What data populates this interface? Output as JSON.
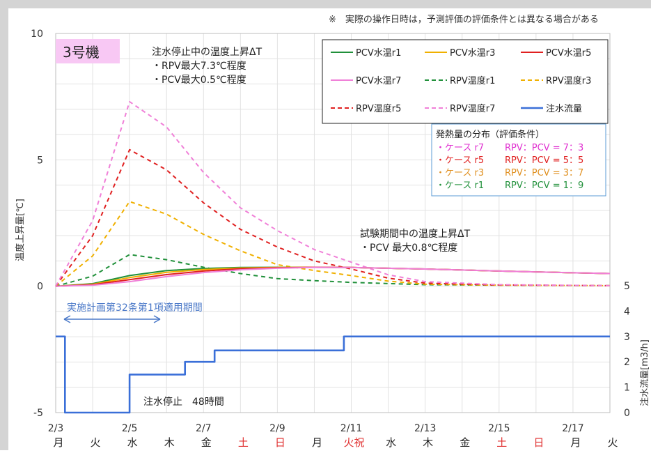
{
  "notice": "※　実際の操作日時は，予測評価の評価条件とは異なる場合がある",
  "unit_label": "3号機",
  "colors": {
    "weekday": "#222222",
    "holiday": "#e03030",
    "annotation_blue": "#4a78c8",
    "legend_heat_border": "#5b9bd5",
    "unit_label_bg": "#f8c8f4"
  },
  "stop_note": {
    "title": "注水停止中の温度上昇ΔT",
    "line1": "・RPV最大7.3℃程度",
    "line2": "・PCV最大0.5℃程度"
  },
  "test_note": {
    "title": "試験期間中の温度上昇ΔT",
    "line1": "・PCV 最大0.8℃程度"
  },
  "period_label": "実施計画第32条第1項適用期間",
  "stop_label": "注水停止　48時間",
  "heat_legend": {
    "title": "発熱量の分布（評価条件）",
    "rows": [
      {
        "case": "・ケース r7",
        "ratio": "RPV：PCV = 7：3",
        "color": "#e030d0"
      },
      {
        "case": "・ケース r5",
        "ratio": "RPV：PCV = 5：5",
        "color": "#e02020"
      },
      {
        "case": "・ケース r3",
        "ratio": "RPV：PCV = 3：7",
        "color": "#e09020"
      },
      {
        "case": "・ケース r1",
        "ratio": "RPV：PCV = 1：9",
        "color": "#20903a"
      }
    ]
  },
  "chart_data": {
    "type": "line",
    "ylabel": "温度上昇量[℃]",
    "ylabel_right": "注水流量[m3/h]",
    "ylim": [
      -5,
      10
    ],
    "yticks": [
      "-5",
      "0",
      "5",
      "10"
    ],
    "ylim_right": [
      0,
      5
    ],
    "yticks_right": [
      "0",
      "1",
      "2",
      "3",
      "4",
      "5"
    ],
    "xlim": [
      0,
      15
    ],
    "grid": true,
    "legend": "top-right",
    "xticks": [
      {
        "x": 0,
        "label": "2/3"
      },
      {
        "x": 2,
        "label": "2/5"
      },
      {
        "x": 4,
        "label": "2/7"
      },
      {
        "x": 6,
        "label": "2/9"
      },
      {
        "x": 8,
        "label": "2/11"
      },
      {
        "x": 10,
        "label": "2/13"
      },
      {
        "x": 12,
        "label": "2/15"
      },
      {
        "x": 14,
        "label": "2/17"
      }
    ],
    "weekdays": [
      {
        "x": 0,
        "label": "月",
        "holiday": false
      },
      {
        "x": 1,
        "label": "火",
        "holiday": false
      },
      {
        "x": 2,
        "label": "水",
        "holiday": false
      },
      {
        "x": 3,
        "label": "木",
        "holiday": false
      },
      {
        "x": 4,
        "label": "金",
        "holiday": false
      },
      {
        "x": 5,
        "label": "土",
        "holiday": true
      },
      {
        "x": 6,
        "label": "日",
        "holiday": true
      },
      {
        "x": 7,
        "label": "月",
        "holiday": false
      },
      {
        "x": 8,
        "label": "火祝",
        "holiday": true
      },
      {
        "x": 9,
        "label": "水",
        "holiday": false
      },
      {
        "x": 10,
        "label": "木",
        "holiday": false
      },
      {
        "x": 11,
        "label": "金",
        "holiday": false
      },
      {
        "x": 12,
        "label": "土",
        "holiday": true
      },
      {
        "x": 13,
        "label": "日",
        "holiday": true
      },
      {
        "x": 14,
        "label": "月",
        "holiday": false
      },
      {
        "x": 15,
        "label": "火",
        "holiday": false
      }
    ],
    "series": [
      {
        "name": "PCV水温r1",
        "color": "#20903a",
        "dash": false,
        "axis": "left",
        "points": [
          [
            0,
            0
          ],
          [
            1,
            0.1
          ],
          [
            2,
            0.42
          ],
          [
            3,
            0.62
          ],
          [
            4,
            0.7
          ],
          [
            5,
            0.74
          ],
          [
            6,
            0.75
          ],
          [
            7,
            0.75
          ],
          [
            8,
            0.74
          ],
          [
            10,
            0.68
          ],
          [
            12,
            0.6
          ],
          [
            14,
            0.53
          ],
          [
            15,
            0.5
          ]
        ]
      },
      {
        "name": "PCV水温r3",
        "color": "#f0b000",
        "dash": false,
        "axis": "left",
        "points": [
          [
            0,
            0
          ],
          [
            1,
            0.08
          ],
          [
            2,
            0.34
          ],
          [
            3,
            0.55
          ],
          [
            4,
            0.66
          ],
          [
            5,
            0.72
          ],
          [
            6,
            0.74
          ],
          [
            7,
            0.75
          ],
          [
            8,
            0.74
          ],
          [
            10,
            0.68
          ],
          [
            12,
            0.6
          ],
          [
            14,
            0.53
          ],
          [
            15,
            0.5
          ]
        ]
      },
      {
        "name": "PCV水温r5",
        "color": "#e02020",
        "dash": false,
        "axis": "left",
        "points": [
          [
            0,
            0
          ],
          [
            1,
            0.06
          ],
          [
            2,
            0.26
          ],
          [
            3,
            0.46
          ],
          [
            4,
            0.6
          ],
          [
            5,
            0.69
          ],
          [
            6,
            0.73
          ],
          [
            7,
            0.75
          ],
          [
            8,
            0.74
          ],
          [
            10,
            0.68
          ],
          [
            12,
            0.6
          ],
          [
            14,
            0.53
          ],
          [
            15,
            0.5
          ]
        ]
      },
      {
        "name": "PCV水温r7",
        "color": "#f080d8",
        "dash": false,
        "axis": "left",
        "points": [
          [
            0,
            0
          ],
          [
            1,
            0.04
          ],
          [
            2,
            0.18
          ],
          [
            3,
            0.38
          ],
          [
            4,
            0.54
          ],
          [
            5,
            0.65
          ],
          [
            6,
            0.71
          ],
          [
            7,
            0.74
          ],
          [
            8,
            0.74
          ],
          [
            10,
            0.68
          ],
          [
            12,
            0.6
          ],
          [
            14,
            0.53
          ],
          [
            15,
            0.5
          ]
        ]
      },
      {
        "name": "RPV温度r1",
        "color": "#20903a",
        "dash": true,
        "axis": "left",
        "points": [
          [
            0,
            0
          ],
          [
            1,
            0.4
          ],
          [
            2,
            1.25
          ],
          [
            3,
            1.05
          ],
          [
            4,
            0.75
          ],
          [
            5,
            0.5
          ],
          [
            6,
            0.3
          ],
          [
            7,
            0.22
          ],
          [
            8,
            0.15
          ],
          [
            10,
            0.06
          ],
          [
            12,
            0.04
          ],
          [
            15,
            0.02
          ]
        ]
      },
      {
        "name": "RPV温度r3",
        "color": "#f0b000",
        "dash": true,
        "axis": "left",
        "points": [
          [
            0,
            0
          ],
          [
            1,
            1.2
          ],
          [
            2,
            3.35
          ],
          [
            3,
            2.85
          ],
          [
            4,
            2.05
          ],
          [
            5,
            1.4
          ],
          [
            6,
            0.85
          ],
          [
            7,
            0.62
          ],
          [
            8,
            0.42
          ],
          [
            9,
            0.2
          ],
          [
            10,
            0.08
          ],
          [
            12,
            0.04
          ],
          [
            15,
            0.02
          ]
        ]
      },
      {
        "name": "RPV温度r5",
        "color": "#e02020",
        "dash": true,
        "axis": "left",
        "points": [
          [
            0,
            0
          ],
          [
            1,
            2.0
          ],
          [
            2,
            5.4
          ],
          [
            3,
            4.6
          ],
          [
            4,
            3.3
          ],
          [
            5,
            2.25
          ],
          [
            6,
            1.55
          ],
          [
            7,
            1.0
          ],
          [
            8,
            0.68
          ],
          [
            9,
            0.32
          ],
          [
            10,
            0.12
          ],
          [
            12,
            0.05
          ],
          [
            15,
            0.02
          ]
        ]
      },
      {
        "name": "RPV温度r7",
        "color": "#f080d8",
        "dash": true,
        "axis": "left",
        "points": [
          [
            0,
            0
          ],
          [
            1,
            2.6
          ],
          [
            2,
            7.3
          ],
          [
            3,
            6.3
          ],
          [
            4,
            4.5
          ],
          [
            5,
            3.1
          ],
          [
            6,
            2.2
          ],
          [
            7,
            1.45
          ],
          [
            8,
            0.95
          ],
          [
            9,
            0.45
          ],
          [
            10,
            0.18
          ],
          [
            12,
            0.06
          ],
          [
            15,
            0.02
          ]
        ]
      },
      {
        "name": "注水流量",
        "color": "#3a6fd8",
        "dash": false,
        "axis": "right",
        "points": [
          [
            0,
            3
          ],
          [
            0.25,
            3
          ],
          [
            0.25,
            0
          ],
          [
            2,
            0
          ],
          [
            2,
            1.5
          ],
          [
            3.5,
            1.5
          ],
          [
            3.5,
            2
          ],
          [
            4.3,
            2
          ],
          [
            4.3,
            2.45
          ],
          [
            7.8,
            2.45
          ],
          [
            7.8,
            3
          ],
          [
            15,
            3
          ]
        ]
      }
    ]
  }
}
